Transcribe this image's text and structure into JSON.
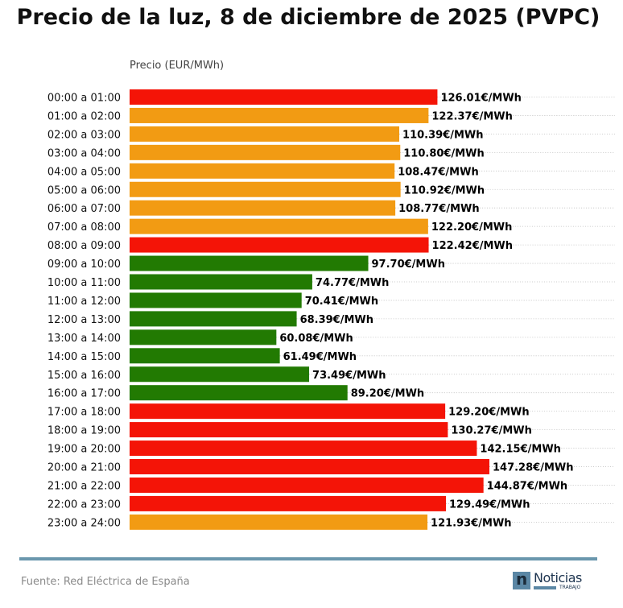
{
  "chart_data": {
    "type": "bar",
    "orientation": "horizontal",
    "title": "Precio de la luz, 8 de diciembre de 2025 (PVPC)",
    "xlabel": "Precio (EUR/MWh)",
    "ylabel": "",
    "xlim": [
      0,
      200
    ],
    "grid": "horizontal dotted",
    "value_suffix": "€/MWh",
    "categories": [
      "00:00 a 01:00",
      "01:00 a 02:00",
      "02:00 a 03:00",
      "03:00 a 04:00",
      "04:00 a 05:00",
      "05:00 a 06:00",
      "06:00 a 07:00",
      "07:00 a 08:00",
      "08:00 a 09:00",
      "09:00 a 10:00",
      "10:00 a 11:00",
      "11:00 a 12:00",
      "12:00 a 13:00",
      "13:00 a 14:00",
      "14:00 a 15:00",
      "15:00 a 16:00",
      "16:00 a 17:00",
      "17:00 a 18:00",
      "18:00 a 19:00",
      "19:00 a 20:00",
      "20:00 a 21:00",
      "21:00 a 22:00",
      "22:00 a 23:00",
      "23:00 a 24:00"
    ],
    "values": [
      126.01,
      122.37,
      110.39,
      110.8,
      108.47,
      110.92,
      108.77,
      122.2,
      122.42,
      97.7,
      74.77,
      70.41,
      68.39,
      60.08,
      61.49,
      73.49,
      89.2,
      129.2,
      130.27,
      142.15,
      147.28,
      144.87,
      129.49,
      121.93
    ],
    "labels": [
      "126.01€/MWh",
      "122.37€/MWh",
      "110.39€/MWh",
      "110.80€/MWh",
      "108.47€/MWh",
      "110.92€/MWh",
      "108.77€/MWh",
      "122.20€/MWh",
      "122.42€/MWh",
      "97.70€/MWh",
      "74.77€/MWh",
      "70.41€/MWh",
      "68.39€/MWh",
      "60.08€/MWh",
      "61.49€/MWh",
      "73.49€/MWh",
      "89.20€/MWh",
      "129.20€/MWh",
      "130.27€/MWh",
      "142.15€/MWh",
      "147.28€/MWh",
      "144.87€/MWh",
      "129.49€/MWh",
      "121.93€/MWh"
    ],
    "levels": [
      "high",
      "mid",
      "mid",
      "mid",
      "mid",
      "mid",
      "mid",
      "mid",
      "high",
      "low",
      "low",
      "low",
      "low",
      "low",
      "low",
      "low",
      "low",
      "high",
      "high",
      "high",
      "high",
      "high",
      "high",
      "mid"
    ]
  },
  "colors": {
    "high": "#f41407",
    "mid": "#f29b13",
    "low": "#227a02",
    "grid": "#bbbbbb",
    "divider": "#6a97ad"
  },
  "footer": {
    "source": "Fuente: Red Eléctrica de España",
    "logo_name": "Noticias",
    "logo_sub": "TRABAJO",
    "logo_mark": "n"
  }
}
